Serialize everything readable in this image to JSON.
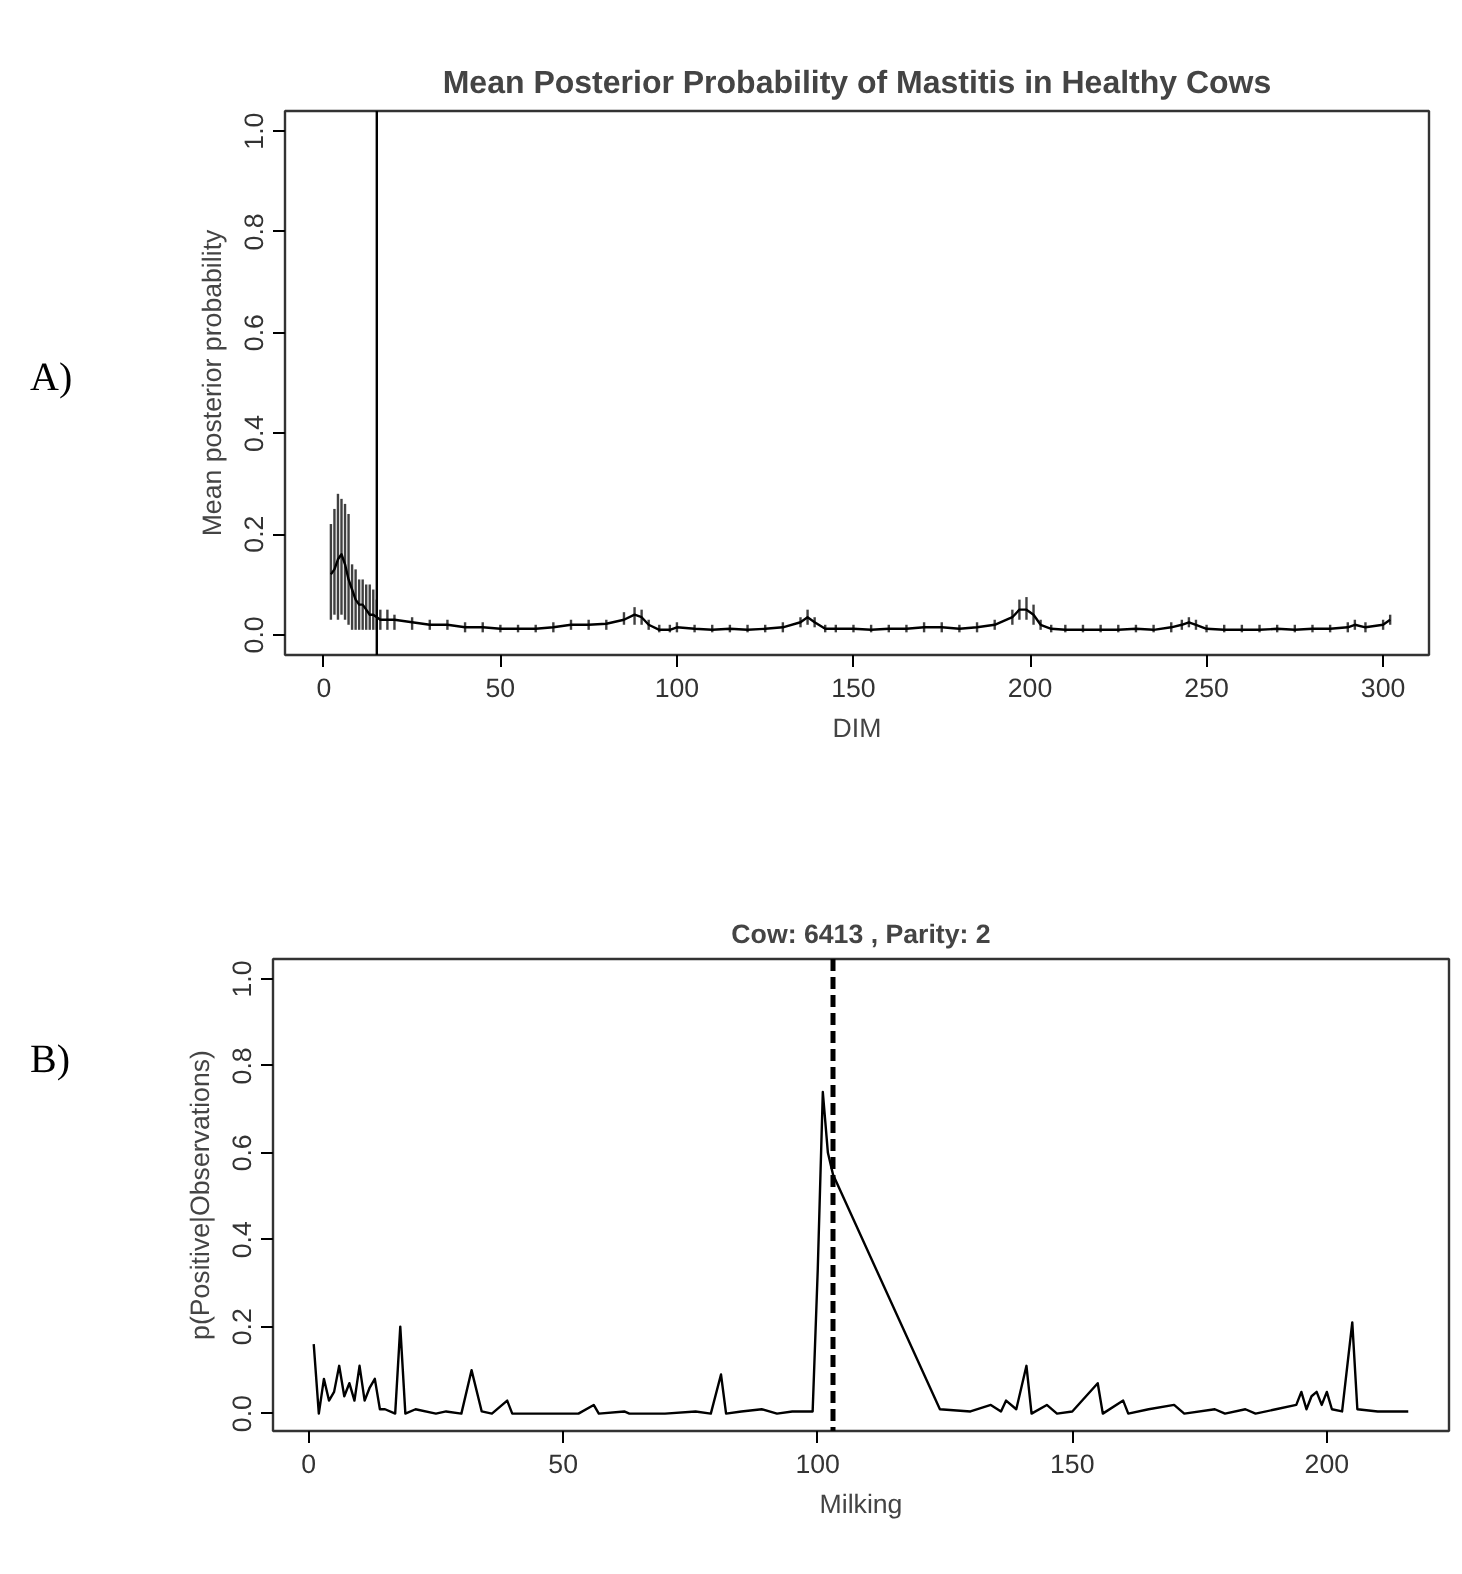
{
  "chart_data": [
    {
      "type": "line",
      "title": "Mean Posterior Probability of Mastitis in Healthy Cows",
      "xlabel": "DIM",
      "ylabel": "Mean posterior probability",
      "annotations": [
        "A)"
      ],
      "x": [
        2,
        3,
        4,
        5,
        6,
        7,
        8,
        9,
        10,
        11,
        12,
        13,
        14,
        15,
        16,
        18,
        20,
        25,
        30,
        35,
        40,
        45,
        50,
        55,
        60,
        65,
        70,
        75,
        80,
        85,
        88,
        90,
        92,
        95,
        98,
        100,
        105,
        110,
        115,
        120,
        125,
        130,
        135,
        137,
        139,
        142,
        145,
        150,
        155,
        160,
        165,
        170,
        175,
        180,
        185,
        190,
        195,
        197,
        199,
        201,
        203,
        206,
        210,
        215,
        220,
        225,
        230,
        235,
        240,
        243,
        245,
        247,
        250,
        255,
        260,
        265,
        270,
        275,
        280,
        285,
        290,
        292,
        295,
        300,
        302
      ],
      "series": [
        {
          "color": "#000000",
          "values": [
            0.12,
            0.13,
            0.15,
            0.16,
            0.14,
            0.11,
            0.09,
            0.07,
            0.06,
            0.06,
            0.05,
            0.04,
            0.04,
            0.035,
            0.03,
            0.03,
            0.03,
            0.025,
            0.02,
            0.02,
            0.015,
            0.015,
            0.012,
            0.012,
            0.012,
            0.015,
            0.02,
            0.02,
            0.022,
            0.03,
            0.04,
            0.035,
            0.02,
            0.01,
            0.01,
            0.015,
            0.012,
            0.01,
            0.012,
            0.01,
            0.012,
            0.015,
            0.025,
            0.035,
            0.025,
            0.012,
            0.012,
            0.012,
            0.01,
            0.012,
            0.012,
            0.015,
            0.015,
            0.012,
            0.015,
            0.02,
            0.035,
            0.05,
            0.05,
            0.04,
            0.02,
            0.012,
            0.01,
            0.01,
            0.01,
            0.01,
            0.012,
            0.01,
            0.015,
            0.02,
            0.025,
            0.02,
            0.012,
            0.01,
            0.01,
            0.01,
            0.012,
            0.01,
            0.012,
            0.012,
            0.015,
            0.02,
            0.015,
            0.02,
            0.03
          ],
          "errors": [
            [
              0.03,
              0.22
            ],
            [
              0.04,
              0.25
            ],
            [
              0.03,
              0.28
            ],
            [
              0.04,
              0.27
            ],
            [
              0.03,
              0.26
            ],
            [
              0.02,
              0.24
            ],
            [
              0.01,
              0.14
            ],
            [
              0.01,
              0.13
            ],
            [
              0.01,
              0.11
            ],
            [
              0.01,
              0.11
            ],
            [
              0.01,
              0.1
            ],
            [
              0.01,
              0.1
            ],
            [
              0.01,
              0.09
            ],
            [
              0.01,
              0.07
            ],
            [
              0.01,
              0.05
            ],
            [
              0.01,
              0.05
            ],
            [
              0.01,
              0.04
            ],
            [
              0.01,
              0.035
            ],
            [
              0.01,
              0.03
            ],
            [
              0.01,
              0.03
            ],
            [
              0.005,
              0.025
            ],
            [
              0.005,
              0.025
            ],
            [
              0.005,
              0.02
            ],
            [
              0.005,
              0.02
            ],
            [
              0.005,
              0.02
            ],
            [
              0.005,
              0.025
            ],
            [
              0.01,
              0.03
            ],
            [
              0.01,
              0.03
            ],
            [
              0.01,
              0.03
            ],
            [
              0.02,
              0.045
            ],
            [
              0.02,
              0.055
            ],
            [
              0.02,
              0.05
            ],
            [
              0.01,
              0.03
            ],
            [
              0.005,
              0.02
            ],
            [
              0.005,
              0.02
            ],
            [
              0.005,
              0.025
            ],
            [
              0.005,
              0.02
            ],
            [
              0.005,
              0.02
            ],
            [
              0.005,
              0.02
            ],
            [
              0.005,
              0.02
            ],
            [
              0.005,
              0.02
            ],
            [
              0.005,
              0.025
            ],
            [
              0.015,
              0.035
            ],
            [
              0.02,
              0.05
            ],
            [
              0.015,
              0.035
            ],
            [
              0.005,
              0.02
            ],
            [
              0.005,
              0.02
            ],
            [
              0.005,
              0.02
            ],
            [
              0.005,
              0.02
            ],
            [
              0.005,
              0.02
            ],
            [
              0.005,
              0.02
            ],
            [
              0.005,
              0.025
            ],
            [
              0.005,
              0.025
            ],
            [
              0.005,
              0.02
            ],
            [
              0.005,
              0.025
            ],
            [
              0.01,
              0.03
            ],
            [
              0.02,
              0.05
            ],
            [
              0.03,
              0.07
            ],
            [
              0.03,
              0.075
            ],
            [
              0.02,
              0.06
            ],
            [
              0.01,
              0.03
            ],
            [
              0.005,
              0.02
            ],
            [
              0.005,
              0.02
            ],
            [
              0.005,
              0.02
            ],
            [
              0.005,
              0.02
            ],
            [
              0.005,
              0.02
            ],
            [
              0.005,
              0.02
            ],
            [
              0.005,
              0.02
            ],
            [
              0.005,
              0.025
            ],
            [
              0.01,
              0.03
            ],
            [
              0.015,
              0.035
            ],
            [
              0.01,
              0.03
            ],
            [
              0.005,
              0.02
            ],
            [
              0.005,
              0.02
            ],
            [
              0.005,
              0.02
            ],
            [
              0.005,
              0.02
            ],
            [
              0.005,
              0.02
            ],
            [
              0.005,
              0.02
            ],
            [
              0.005,
              0.02
            ],
            [
              0.005,
              0.02
            ],
            [
              0.005,
              0.025
            ],
            [
              0.01,
              0.03
            ],
            [
              0.005,
              0.025
            ],
            [
              0.01,
              0.03
            ],
            [
              0.02,
              0.04
            ]
          ]
        }
      ],
      "xlim": [
        -11,
        313
      ],
      "ylim": [
        -0.04,
        1.04
      ],
      "xticks": [
        0,
        50,
        100,
        150,
        200,
        250,
        300
      ],
      "yticks": [
        {
          "value": 0,
          "label": "0.0"
        },
        {
          "value": 0.2,
          "label": "0.2"
        },
        {
          "value": 0.4,
          "label": "0.4"
        },
        {
          "value": 0.6,
          "label": "0.6"
        },
        {
          "value": 0.8,
          "label": "0.8"
        },
        {
          "value": 1,
          "label": "1.0"
        }
      ],
      "ref_lines": [
        {
          "axis": "x",
          "value": 15,
          "color": "#000000",
          "line_style": "solid"
        }
      ],
      "grid": false
    },
    {
      "type": "line",
      "title": "Cow: 6413 , Parity: 2",
      "xlabel": "Milking",
      "ylabel": "p(Positive|Observations)",
      "annotations": [
        "B)"
      ],
      "x": [
        1,
        2,
        3,
        4,
        5,
        6,
        7,
        8,
        9,
        10,
        11,
        12,
        13,
        14,
        15,
        17,
        18,
        19,
        21,
        25,
        27,
        30,
        32,
        34,
        36,
        39,
        40,
        45,
        50,
        53,
        56,
        57,
        62,
        63,
        70,
        76,
        79,
        81,
        82,
        85,
        89,
        92,
        95,
        99,
        100,
        101,
        102,
        103,
        124,
        130,
        134,
        136,
        137,
        139,
        141,
        142,
        145,
        147,
        150,
        155,
        156,
        160,
        161,
        165,
        170,
        172,
        178,
        180,
        184,
        186,
        190,
        194,
        195,
        196,
        197,
        198,
        199,
        200,
        201,
        203,
        205,
        206,
        210,
        216
      ],
      "series": [
        {
          "color": "#000000",
          "values": [
            0.16,
            0.0,
            0.08,
            0.03,
            0.05,
            0.11,
            0.04,
            0.07,
            0.03,
            0.11,
            0.03,
            0.06,
            0.08,
            0.01,
            0.01,
            0.0,
            0.2,
            0.0,
            0.01,
            0.0,
            0.005,
            0.0,
            0.1,
            0.005,
            0.0,
            0.03,
            0.0,
            0.0,
            0.0,
            0.0,
            0.02,
            0.0,
            0.005,
            0.0,
            0.0,
            0.005,
            0.0,
            0.09,
            0.0,
            0.005,
            0.01,
            0.0,
            0.005,
            0.005,
            0.33,
            0.74,
            0.6,
            0.55,
            0.01,
            0.005,
            0.02,
            0.005,
            0.03,
            0.01,
            0.11,
            0.0,
            0.02,
            0.0,
            0.005,
            0.07,
            0.0,
            0.03,
            0.0,
            0.01,
            0.02,
            0.0,
            0.01,
            0.0,
            0.01,
            0.0,
            0.01,
            0.02,
            0.05,
            0.01,
            0.04,
            0.05,
            0.02,
            0.05,
            0.01,
            0.005,
            0.21,
            0.01,
            0.005,
            0.005
          ]
        }
      ],
      "xlim": [
        -7,
        224
      ],
      "ylim": [
        -0.04,
        1.046
      ],
      "xticks": [
        0,
        50,
        100,
        150,
        200
      ],
      "yticks": [
        {
          "value": 0,
          "label": "0.0"
        },
        {
          "value": 0.2,
          "label": "0.2"
        },
        {
          "value": 0.4,
          "label": "0.4"
        },
        {
          "value": 0.6,
          "label": "0.6"
        },
        {
          "value": 0.8,
          "label": "0.8"
        },
        {
          "value": 1,
          "label": "1.0"
        }
      ],
      "ref_lines": [
        {
          "axis": "x",
          "value": 103,
          "color": "#000000",
          "line_style": "dashed"
        }
      ],
      "grid": false
    }
  ]
}
